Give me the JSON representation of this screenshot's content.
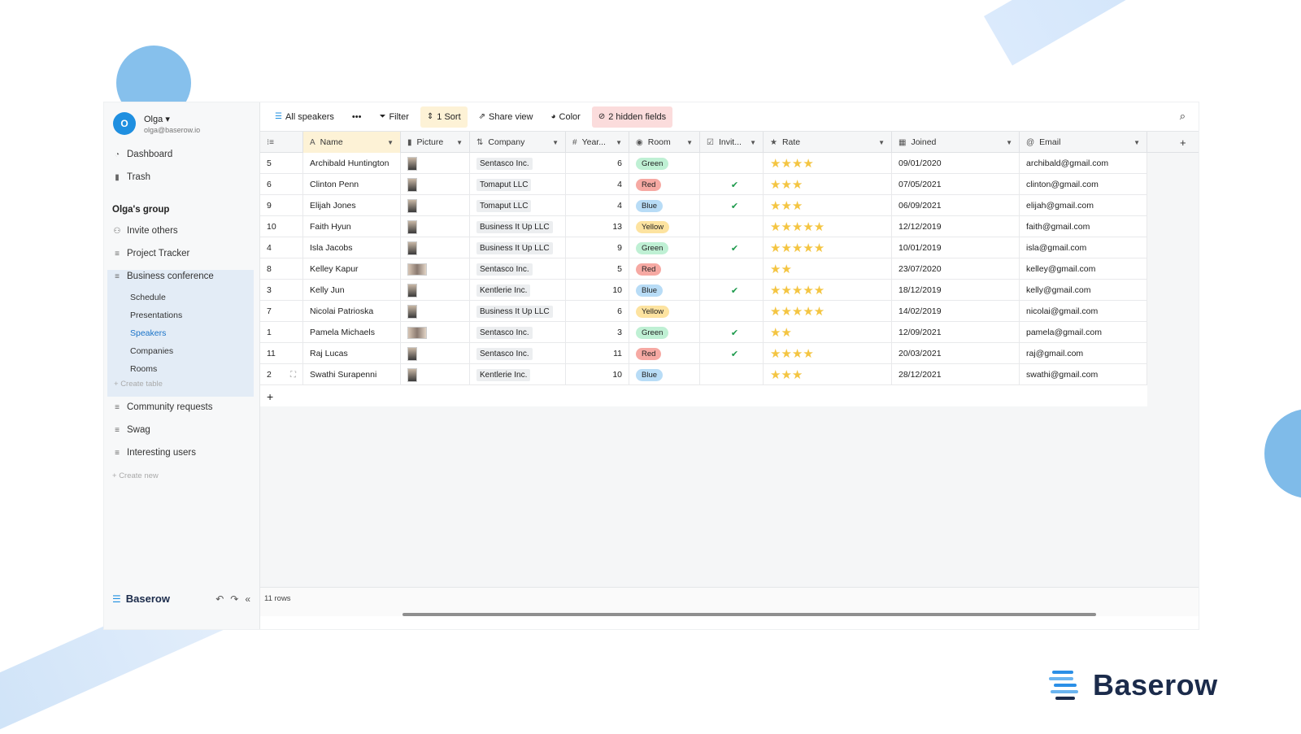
{
  "user": {
    "initial": "O",
    "name": "Olga",
    "email": "olga@baserow.io"
  },
  "sidebar": {
    "top_items": [
      {
        "label": "Dashboard"
      },
      {
        "label": "Trash"
      }
    ],
    "group_title": "Olga's group",
    "group_items": [
      {
        "label": "Invite others"
      },
      {
        "label": "Project Tracker"
      },
      {
        "label": "Business conference"
      }
    ],
    "tables": [
      {
        "label": "Schedule"
      },
      {
        "label": "Presentations"
      },
      {
        "label": "Speakers",
        "active": true
      },
      {
        "label": "Companies"
      },
      {
        "label": "Rooms"
      }
    ],
    "create_table": "Create table",
    "more_items": [
      {
        "label": "Community requests"
      },
      {
        "label": "Swag"
      },
      {
        "label": "Interesting users"
      }
    ],
    "create_new": "Create new",
    "logo": "Baserow"
  },
  "toolbar": {
    "view": "All speakers",
    "more": "•••",
    "filter": "Filter",
    "sort": "1 Sort",
    "share": "Share view",
    "color": "Color",
    "hidden": "2 hidden fields"
  },
  "columns": {
    "name": "Name",
    "picture": "Picture",
    "company": "Company",
    "year": "Year...",
    "room": "Room",
    "invited": "Invit...",
    "rate": "Rate",
    "joined": "Joined",
    "email": "Email"
  },
  "rows": [
    {
      "id": "5",
      "name": "Archibald Huntington",
      "company": "Sentasco Inc.",
      "year": "6",
      "room": "Green",
      "invited": false,
      "rate": "★★★★",
      "joined": "09/01/2020",
      "email": "archibald@gmail.com"
    },
    {
      "id": "6",
      "name": "Clinton Penn",
      "company": "Tomaput LLC",
      "year": "4",
      "room": "Red",
      "invited": true,
      "rate": "★★★",
      "joined": "07/05/2021",
      "email": "clinton@gmail.com"
    },
    {
      "id": "9",
      "name": "Elijah Jones",
      "company": "Tomaput LLC",
      "year": "4",
      "room": "Blue",
      "invited": true,
      "rate": "★★★",
      "joined": "06/09/2021",
      "email": "elijah@gmail.com"
    },
    {
      "id": "10",
      "name": "Faith Hyun",
      "company": "Business It Up LLC",
      "year": "13",
      "room": "Yellow",
      "invited": false,
      "rate": "★★★★★",
      "joined": "12/12/2019",
      "email": "faith@gmail.com"
    },
    {
      "id": "4",
      "name": "Isla Jacobs",
      "company": "Business It Up LLC",
      "year": "9",
      "room": "Green",
      "invited": true,
      "rate": "★★★★★",
      "joined": "10/01/2019",
      "email": "isla@gmail.com"
    },
    {
      "id": "8",
      "name": "Kelley Kapur",
      "company": "Sentasco Inc.",
      "year": "5",
      "room": "Red",
      "invited": false,
      "rate": "★★",
      "joined": "23/07/2020",
      "email": "kelley@gmail.com",
      "wide": true
    },
    {
      "id": "3",
      "name": "Kelly Jun",
      "company": "Kentlerie Inc.",
      "year": "10",
      "room": "Blue",
      "invited": true,
      "rate": "★★★★★",
      "joined": "18/12/2019",
      "email": "kelly@gmail.com"
    },
    {
      "id": "7",
      "name": "Nicolai Patrioska",
      "company": "Business It Up LLC",
      "year": "6",
      "room": "Yellow",
      "invited": false,
      "rate": "★★★★★",
      "joined": "14/02/2019",
      "email": "nicolai@gmail.com"
    },
    {
      "id": "1",
      "name": "Pamela Michaels",
      "company": "Sentasco Inc.",
      "year": "3",
      "room": "Green",
      "invited": true,
      "rate": "★★",
      "joined": "12/09/2021",
      "email": "pamela@gmail.com",
      "wide": true
    },
    {
      "id": "11",
      "name": "Raj Lucas",
      "company": "Sentasco Inc.",
      "year": "11",
      "room": "Red",
      "invited": true,
      "rate": "★★★★",
      "joined": "20/03/2021",
      "email": "raj@gmail.com"
    },
    {
      "id": "2",
      "name": "Swathi Surapenni",
      "company": "Kentlerie Inc.",
      "year": "10",
      "room": "Blue",
      "invited": false,
      "rate": "★★★",
      "joined": "28/12/2021",
      "email": "swathi@gmail.com"
    }
  ],
  "room_colors": {
    "Green": "#bff0d4",
    "Red": "#f6a9a3",
    "Blue": "#b8dcf6",
    "Yellow": "#fde3a0"
  },
  "footer": {
    "count": "11 rows"
  },
  "brand": {
    "name": "Baserow",
    "color": "#1b2b4b"
  }
}
